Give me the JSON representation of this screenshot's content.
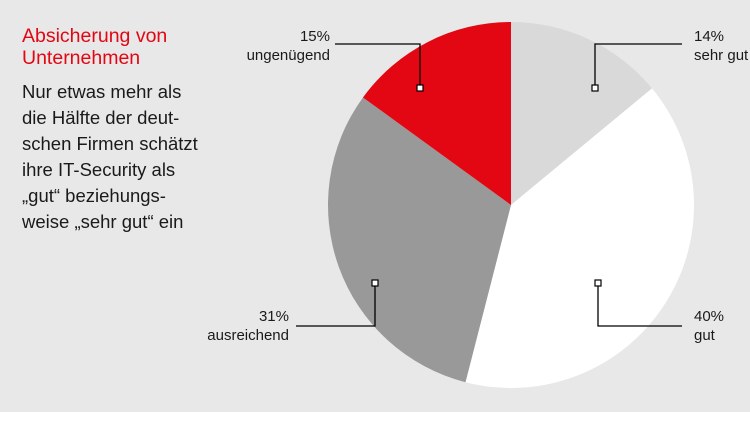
{
  "title": "Absicherung von\nUnternehmen",
  "subtitle": "Nur etwas mehr als\ndie Hälfte der deut-\nschen Firmen schätzt\nihre IT-Security als\n„gut“ beziehungs-\nweise „sehr gut“ ein",
  "colors": {
    "background": "#e8e8e8",
    "accent_red": "#e30613",
    "slice_line": "#000000"
  },
  "chart_data": {
    "type": "pie",
    "title": "Absicherung von Unternehmen",
    "start": "top",
    "direction": "clockwise",
    "slices": [
      {
        "label": "sehr gut",
        "value": 14,
        "value_label": "14%",
        "color": "#d9d9d9"
      },
      {
        "label": "gut",
        "value": 40,
        "value_label": "40%",
        "color": "#ffffff"
      },
      {
        "label": "ausreichend",
        "value": 31,
        "value_label": "31%",
        "color": "#999999"
      },
      {
        "label": "ungenügend",
        "value": 15,
        "value_label": "15%",
        "color": "#e30613"
      }
    ]
  }
}
